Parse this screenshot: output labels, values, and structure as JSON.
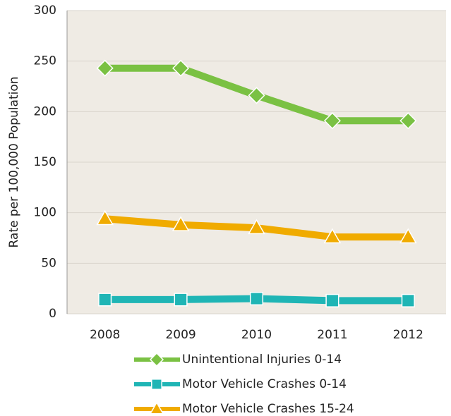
{
  "chart_data": {
    "type": "line",
    "y_label": "Rate per 100,000 Population",
    "categories": [
      "2008",
      "2009",
      "2010",
      "2011",
      "2012"
    ],
    "series": [
      {
        "name": "Unintentional Injuries 0-14",
        "color": "#7ac143",
        "marker": "diamond",
        "values": [
          243,
          243,
          216,
          191,
          191
        ]
      },
      {
        "name": "Motor Vehicle Crashes 0-14",
        "color": "#1fb5b5",
        "marker": "square",
        "values": [
          14,
          14,
          15,
          13,
          13
        ]
      },
      {
        "name": "Motor Vehicle Crashes 15-24",
        "color": "#f0ab00",
        "marker": "triangle",
        "values": [
          94,
          88,
          85,
          76,
          76
        ]
      }
    ],
    "ylim": [
      0,
      300
    ],
    "yticks": [
      0,
      50,
      100,
      150,
      200,
      250,
      300
    ],
    "grid": true,
    "legend": "bottom"
  }
}
